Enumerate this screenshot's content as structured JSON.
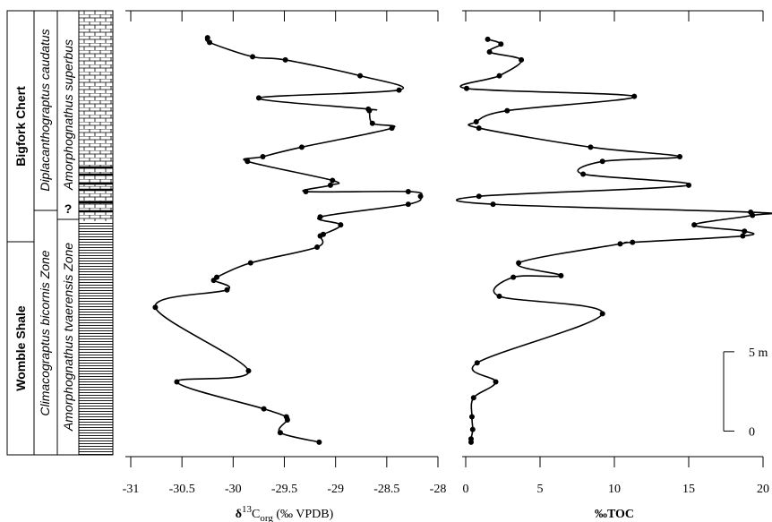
{
  "column": {
    "formations": [
      "Bigfork Chert",
      "Womble Shale"
    ],
    "graptolite_zones": [
      "Diplacanthograptus caudatus",
      "Climacograptus bicornis Zone"
    ],
    "conodont_zones": [
      "Amorphognathus superbus",
      "Amorphognathus tvaerensis Zone"
    ],
    "uncertain_boundary": "?"
  },
  "chart_data": [
    {
      "type": "line",
      "xlabel": [
        "δ",
        "13",
        "C",
        "org",
        " (‰ VPDB)"
      ],
      "xlim": [
        -31,
        -28
      ],
      "xticks": [
        -31,
        -30.5,
        -30,
        -29.5,
        -29,
        -28.5,
        -28
      ],
      "ylim": [
        -1.5,
        26.5
      ],
      "color": "#000000",
      "series": [
        {
          "values": [
            -30.25,
            -30.23,
            -29.81,
            -29.49,
            -28.76,
            -28.38,
            -29.75,
            -28.68,
            -28.67,
            -28.64,
            -28.45,
            -29.33,
            -29.71,
            -29.86,
            -29.03,
            -29.05,
            -29.29,
            -28.29,
            -28.17,
            -28.29,
            -29.15,
            -28.95,
            -29.12,
            -29.15,
            -29.18,
            -29.83,
            -30.16,
            -30.19,
            -30.06,
            -30.76,
            -29.85,
            -30.55,
            -29.7,
            -29.48,
            -29.47,
            -29.54,
            -29.16
          ],
          "y": [
            24.8,
            24.5,
            23.6,
            23.4,
            22.4,
            21.5,
            21.0,
            20.3,
            20.2,
            19.4,
            19.1,
            17.9,
            17.3,
            17.0,
            15.8,
            15.5,
            15.1,
            15.1,
            14.8,
            14.3,
            13.5,
            13.0,
            12.4,
            12.3,
            11.6,
            10.6,
            9.7,
            9.5,
            8.9,
            7.8,
            3.8,
            3.1,
            1.4,
            0.9,
            0.7,
            -0.1,
            -0.7
          ]
        }
      ]
    },
    {
      "type": "line",
      "xlabel": [
        "‰TOC"
      ],
      "xlim": [
        0,
        20
      ],
      "xticks": [
        0,
        5,
        10,
        15,
        20
      ],
      "ylim": [
        -1.5,
        26.5
      ],
      "yticks": [
        0,
        {
          "value": 5,
          "label": "5 m"
        }
      ],
      "color": "#000000",
      "series": [
        {
          "values": [
            1.48,
            2.37,
            1.6,
            3.74,
            2.26,
            0.06,
            11.34,
            2.79,
            0.71,
            0.89,
            8.4,
            14.4,
            9.2,
            7.9,
            15.0,
            0.89,
            1.84,
            19.17,
            19.29,
            15.37,
            18.75,
            18.64,
            11.22,
            10.39,
            3.56,
            6.41,
            3.2,
            2.26,
            9.2,
            0.77,
            2.02,
            0.53,
            0.42,
            0.47,
            0.36,
            0.36
          ],
          "y": [
            24.7,
            24.4,
            23.9,
            23.4,
            22.4,
            21.6,
            21.1,
            20.2,
            19.5,
            19.1,
            17.9,
            17.3,
            17.0,
            16.2,
            15.5,
            14.8,
            14.3,
            13.8,
            13.6,
            13.0,
            12.6,
            12.3,
            11.9,
            11.8,
            10.6,
            9.8,
            9.7,
            8.5,
            7.4,
            4.3,
            3.1,
            2.1,
            0.9,
            0.1,
            -0.5,
            -0.7
          ]
        }
      ]
    }
  ]
}
